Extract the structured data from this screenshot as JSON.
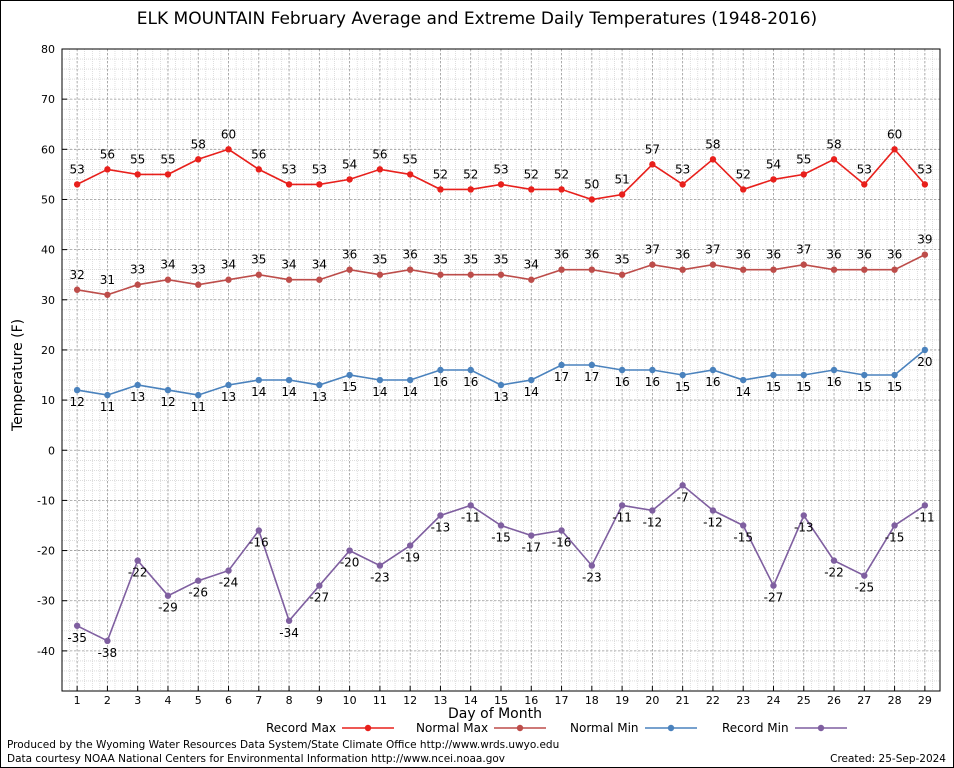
{
  "title": "ELK MOUNTAIN February Average and Extreme Daily Temperatures (1948-2016)",
  "footer": {
    "credit_line1": "Produced by the Wyoming Water Resources Data System/State Climate Office http://www.wrds.uwyo.edu",
    "credit_line2": "Data courtesy NOAA National Centers for Environmental Information http://www.ncei.noaa.gov",
    "created": "Created:  25-Sep-2024"
  },
  "chart_data": {
    "type": "line",
    "title": "ELK MOUNTAIN February Average and Extreme Daily Temperatures (1948-2016)",
    "xlabel": "Day of Month",
    "ylabel": "Temperature (F)",
    "x": [
      1,
      2,
      3,
      4,
      5,
      6,
      7,
      8,
      9,
      10,
      11,
      12,
      13,
      14,
      15,
      16,
      17,
      18,
      19,
      20,
      21,
      22,
      23,
      24,
      25,
      26,
      27,
      28,
      29
    ],
    "xlim": [
      0.5,
      29.5
    ],
    "ylim": [
      -48,
      80
    ],
    "yticks": [
      -40,
      -30,
      -20,
      -10,
      0,
      10,
      20,
      30,
      40,
      50,
      60,
      70,
      80
    ],
    "grid": true,
    "legend_position": "bottom",
    "series": [
      {
        "name": "Record Max",
        "color": "#e8201c",
        "values": [
          53,
          56,
          55,
          55,
          58,
          60,
          56,
          53,
          53,
          54,
          56,
          55,
          52,
          52,
          53,
          52,
          52,
          50,
          51,
          57,
          53,
          58,
          52,
          54,
          55,
          58,
          53,
          60,
          53
        ]
      },
      {
        "name": "Normal Max",
        "color": "#bd4d4a",
        "values": [
          32,
          31,
          33,
          34,
          33,
          34,
          35,
          34,
          34,
          36,
          35,
          36,
          35,
          35,
          35,
          34,
          36,
          36,
          35,
          37,
          36,
          37,
          36,
          36,
          37,
          36,
          36,
          36,
          39
        ]
      },
      {
        "name": "Normal Min",
        "color": "#4a82bd",
        "values": [
          12,
          11,
          13,
          12,
          11,
          13,
          14,
          14,
          13,
          15,
          14,
          14,
          16,
          16,
          13,
          14,
          17,
          17,
          16,
          16,
          15,
          16,
          14,
          15,
          15,
          16,
          15,
          15,
          20
        ]
      },
      {
        "name": "Record Min",
        "color": "#7f5fa0",
        "values": [
          -35,
          -38,
          -22,
          -29,
          -26,
          -24,
          -16,
          -34,
          -27,
          -20,
          -23,
          -19,
          -13,
          -11,
          -15,
          -17,
          -16,
          -23,
          -11,
          -12,
          -7,
          -12,
          -15,
          -27,
          -13,
          -22,
          -25,
          -15,
          -11
        ]
      }
    ]
  }
}
